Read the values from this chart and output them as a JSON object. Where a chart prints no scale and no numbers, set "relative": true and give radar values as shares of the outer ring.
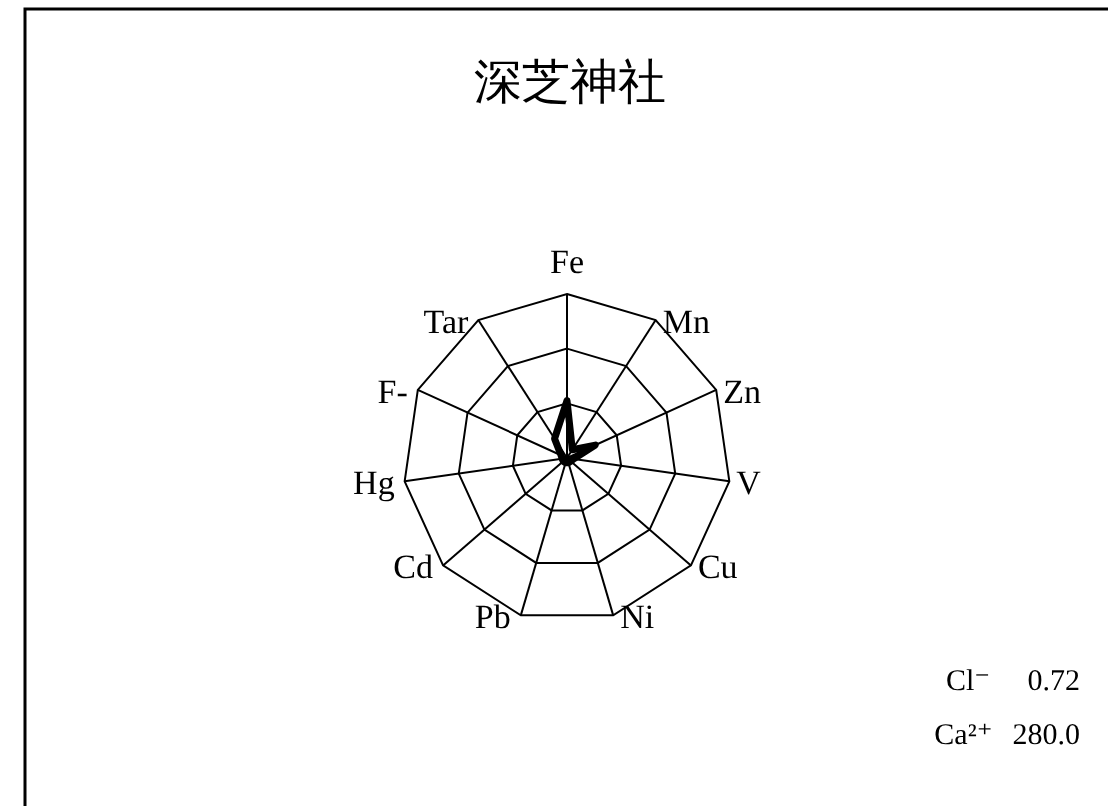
{
  "chart_data": {
    "type": "radar",
    "title": "深芝神社",
    "categories": [
      "Fe",
      "Mn",
      "Zn",
      "V",
      "Cu",
      "Ni",
      "Pb",
      "Cd",
      "Hg",
      "F-",
      "Tar"
    ],
    "relative": true,
    "grid": true,
    "series": [
      {
        "color": "#000000",
        "values": [
          0.35,
          0.06,
          0.19,
          0.04,
          0.03,
          0.03,
          0.03,
          0.03,
          0.03,
          0.04,
          0.14
        ]
      }
    ],
    "annotations": [
      "Cl⁻ 0.72",
      "Ca²⁺ 280.0"
    ]
  }
}
